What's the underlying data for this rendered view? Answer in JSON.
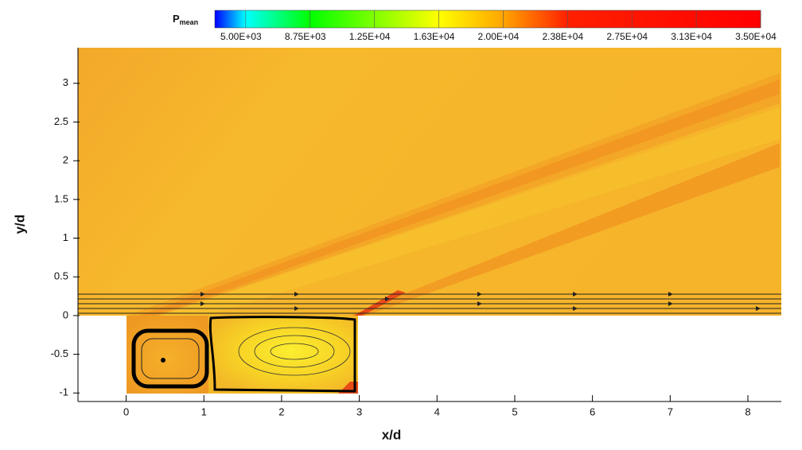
{
  "chart_data": {
    "type": "contour",
    "x_label": "x/d",
    "y_label": "y/d",
    "xlim": [
      -0.62,
      8.43
    ],
    "ylim": [
      -1.11,
      3.46
    ],
    "xticks": [
      0,
      1,
      2,
      3,
      4,
      5,
      6,
      7,
      8
    ],
    "yticks": [
      -1,
      -0.5,
      0,
      0.5,
      1,
      1.5,
      2,
      2.5,
      3
    ],
    "colorbar": {
      "label": "P",
      "label_sub": "mean",
      "clim": [
        3200,
        35000
      ],
      "ticks": [
        {
          "value": 5000,
          "label": "5.00E+03"
        },
        {
          "value": 8750,
          "label": "8.75E+03"
        },
        {
          "value": 12500,
          "label": "1.25E+04"
        },
        {
          "value": 16250,
          "label": "1.63E+04"
        },
        {
          "value": 20000,
          "label": "2.00E+04"
        },
        {
          "value": 23750,
          "label": "2.38E+04"
        },
        {
          "value": 27500,
          "label": "2.75E+04"
        },
        {
          "value": 31250,
          "label": "3.13E+04"
        },
        {
          "value": 35000,
          "label": "3.50E+04"
        }
      ],
      "colormap": [
        {
          "value": 3200,
          "color": "#0000ff"
        },
        {
          "value": 5000,
          "color": "#00ffff"
        },
        {
          "value": 8750,
          "color": "#00ff00"
        },
        {
          "value": 16250,
          "color": "#ffff00"
        },
        {
          "value": 20000,
          "color": "#ffa500"
        },
        {
          "value": 23750,
          "color": "#ff2000"
        },
        {
          "value": 35000,
          "color": "#ff0000"
        }
      ]
    }
  }
}
